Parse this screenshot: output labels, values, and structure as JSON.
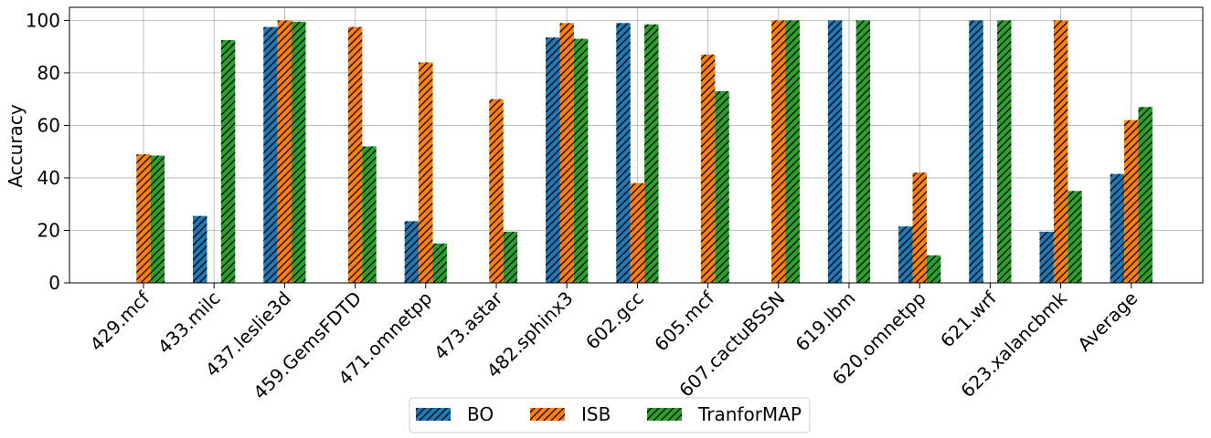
{
  "chart_data": {
    "type": "bar",
    "title": "",
    "xlabel": "",
    "ylabel": "Accuracy",
    "ylim": [
      0,
      105
    ],
    "yticks": [
      0,
      20,
      40,
      60,
      80,
      100
    ],
    "grid": true,
    "legend_position": "bottom-center",
    "categories": [
      "429.mcf",
      "433.milc",
      "437.leslie3d",
      "459.GemsFDTD",
      "471.omnetpp",
      "473.astar",
      "482.sphinx3",
      "602.gcc",
      "605.mcf",
      "607.cactuBSSN",
      "619.lbm",
      "620.omnetpp",
      "621.wrf",
      "623.xalancbmk",
      "Average"
    ],
    "series": [
      {
        "name": "BO",
        "color": "#1f77b4",
        "values": [
          0,
          25.5,
          97.5,
          0,
          23.5,
          0,
          93.5,
          99,
          0,
          0,
          100,
          21.5,
          100,
          19.5,
          41.5
        ]
      },
      {
        "name": "ISB",
        "color": "#ff7f0e",
        "values": [
          49,
          0,
          100,
          97.5,
          84,
          70,
          99,
          38,
          87,
          100,
          0,
          42,
          0,
          100,
          62
        ]
      },
      {
        "name": "TranforMAP",
        "color": "#2ca02c",
        "values": [
          48.5,
          92.5,
          99.5,
          52,
          15,
          19.5,
          93,
          98.5,
          73,
          100,
          100,
          10.5,
          100,
          35,
          67
        ]
      }
    ]
  }
}
